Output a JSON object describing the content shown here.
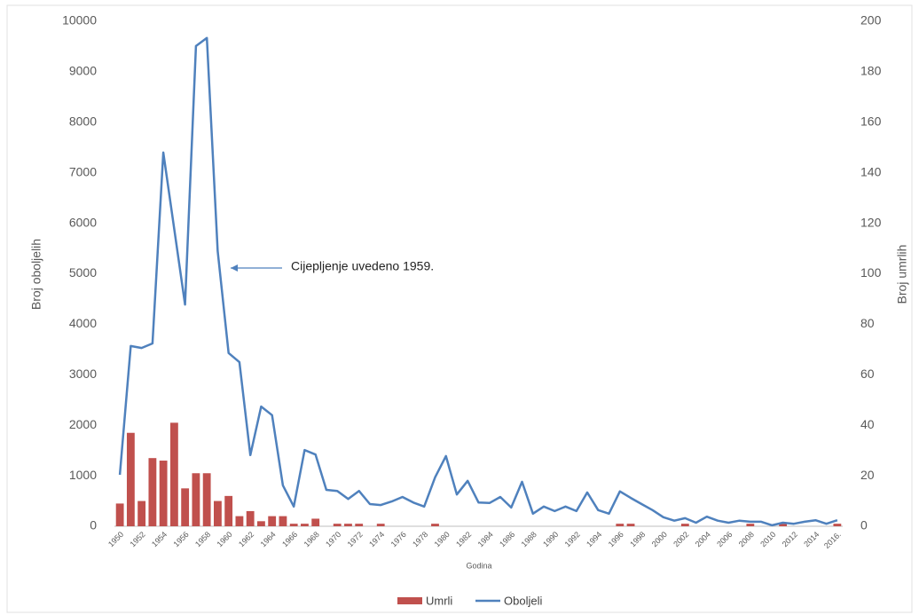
{
  "chart_data": {
    "type": "bar-line",
    "annotation": "Cijepljenje uvedeno 1959.",
    "x_label": "Godina",
    "y_label": "Broj oboljelih",
    "y2_label": "Broj umrlih",
    "categories": [
      "1950",
      null,
      "1952",
      null,
      "1954",
      null,
      "1956",
      null,
      "1958",
      null,
      "1960",
      null,
      "1962",
      null,
      "1964",
      null,
      "1966",
      null,
      "1968",
      null,
      "1970",
      null,
      "1972",
      null,
      "1974",
      null,
      "1976",
      null,
      "1978",
      null,
      "1980",
      null,
      "1982",
      null,
      "1984",
      null,
      "1986",
      null,
      "1988",
      null,
      "1990",
      null,
      "1992",
      null,
      "1994",
      null,
      "1996",
      null,
      "1998",
      null,
      "2000",
      null,
      "2002",
      null,
      "2004",
      null,
      "2006",
      null,
      "2008",
      null,
      "2010",
      null,
      "2012",
      null,
      "2014",
      null,
      "2016."
    ],
    "series": [
      {
        "name": "Umrli",
        "type": "bar",
        "axis": "y2",
        "color": "#c0504d",
        "values": [
          9,
          37,
          10,
          27,
          26,
          41,
          15,
          21,
          21,
          10,
          12,
          4,
          6,
          2,
          4,
          4,
          1,
          1,
          3,
          0,
          1,
          1,
          1,
          0,
          1,
          0,
          0,
          0,
          0,
          1,
          0,
          0,
          0,
          0,
          0,
          0,
          0,
          0,
          0,
          0,
          0,
          0,
          0,
          0,
          0,
          0,
          1,
          1,
          0,
          0,
          0,
          0,
          1,
          0,
          0,
          0,
          0,
          0,
          1,
          0,
          0,
          1,
          0,
          0,
          0,
          0,
          1
        ]
      },
      {
        "name": "Oboljeli",
        "type": "line",
        "axis": "y",
        "color": "#4f81bd",
        "values": [
          1020,
          3570,
          3530,
          3620,
          7400,
          5890,
          4390,
          9510,
          9670,
          5450,
          3430,
          3250,
          1410,
          2370,
          2200,
          810,
          390,
          1510,
          1420,
          720,
          700,
          540,
          700,
          440,
          420,
          490,
          580,
          470,
          390,
          970,
          1390,
          630,
          900,
          470,
          460,
          580,
          370,
          880,
          250,
          390,
          300,
          390,
          300,
          670,
          320,
          250,
          690,
          560,
          440,
          320,
          180,
          110,
          160,
          70,
          190,
          110,
          70,
          110,
          90,
          90,
          20,
          70,
          50,
          90,
          120,
          50,
          120
        ]
      }
    ],
    "ylim": [
      0,
      10000
    ],
    "yticks": [
      0,
      1000,
      2000,
      3000,
      4000,
      5000,
      6000,
      7000,
      8000,
      9000,
      10000
    ],
    "y2lim": [
      0,
      200
    ],
    "y2ticks": [
      0,
      20,
      40,
      60,
      80,
      100,
      120,
      140,
      160,
      180,
      200
    ],
    "legend": "bottom"
  }
}
